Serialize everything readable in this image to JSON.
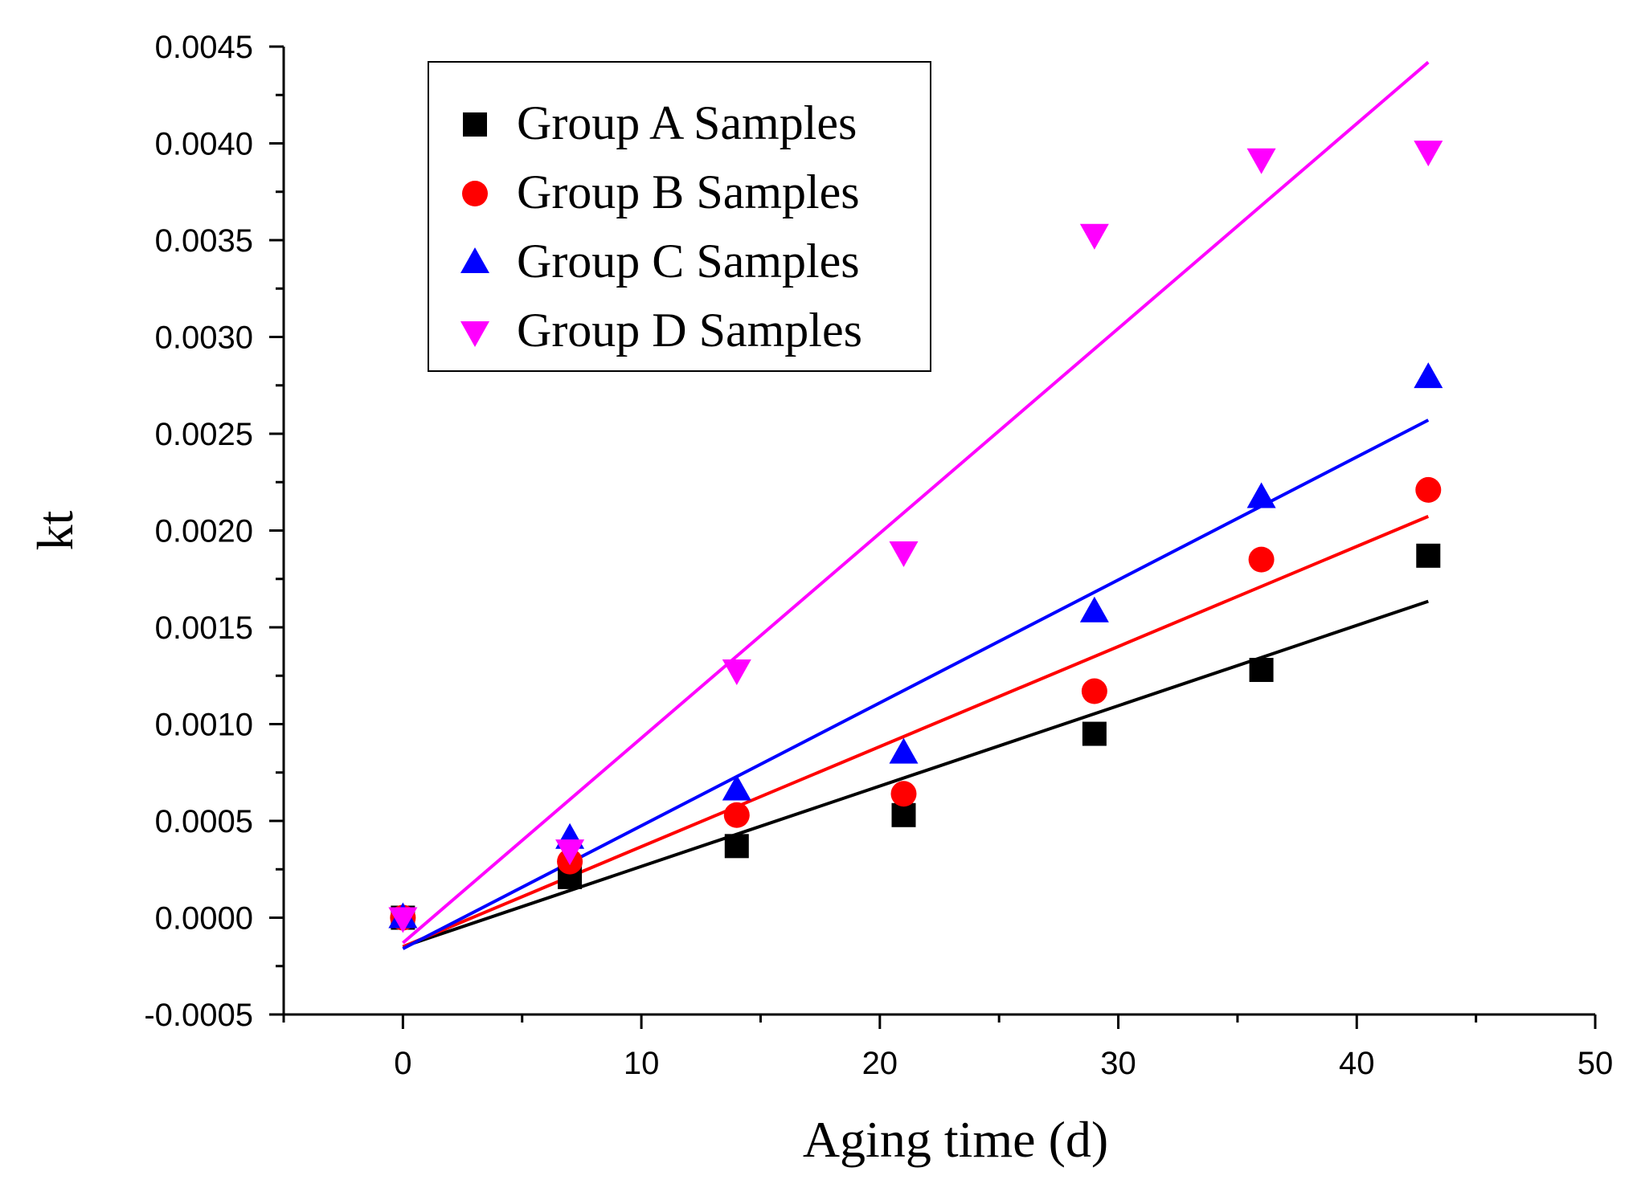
{
  "chart_data": {
    "type": "scatter",
    "title": "",
    "xlabel": "Aging time (d)",
    "ylabel": "kt",
    "xlim": [
      -5,
      50
    ],
    "ylim": [
      -0.0005,
      0.0045
    ],
    "xticks": [
      "0",
      "10",
      "20",
      "30",
      "40",
      "50"
    ],
    "yticks": [
      "-0.0005",
      "0.0000",
      "0.0005",
      "0.0010",
      "0.0015",
      "0.0020",
      "0.0025",
      "0.0030",
      "0.0035",
      "0.0040",
      "0.0045"
    ],
    "grid": false,
    "legend_position": "top-left",
    "x": [
      0,
      7,
      14,
      21,
      29,
      36,
      43
    ],
    "series": [
      {
        "name": "Group A Samples",
        "color": "#000000",
        "marker": "square",
        "values": [
          0.0,
          0.00021,
          0.00037,
          0.00053,
          0.00095,
          0.00128,
          0.00187
        ],
        "fit": {
          "intercept": -0.00015,
          "slope": 4.15e-05
        }
      },
      {
        "name": "Group B Samples",
        "color": "#ff0000",
        "marker": "circle",
        "values": [
          0.0,
          0.00029,
          0.00053,
          0.00064,
          0.00117,
          0.00185,
          0.00221
        ],
        "fit": {
          "intercept": -0.00015,
          "slope": 5.17e-05
        }
      },
      {
        "name": "Group C Samples",
        "color": "#0000ff",
        "marker": "triangle-up",
        "values": [
          0.0,
          0.00041,
          0.00066,
          0.00085,
          0.00158,
          0.00217,
          0.00279
        ],
        "fit": {
          "intercept": -0.00016,
          "slope": 6.35e-05
        }
      },
      {
        "name": "Group D Samples",
        "color": "#ff00ff",
        "marker": "triangle-down",
        "values": [
          0.0,
          0.00035,
          0.00128,
          0.00189,
          0.00353,
          0.00392,
          0.00396
        ],
        "fit": {
          "intercept": -0.00013,
          "slope": 0.0001058
        }
      }
    ]
  }
}
